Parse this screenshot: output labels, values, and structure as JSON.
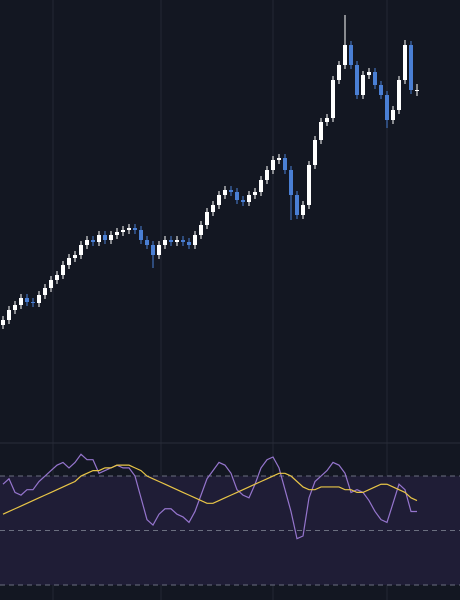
{
  "chart_data": [
    {
      "type": "candlestick",
      "ylim": [
        0,
        440
      ],
      "up_color": "#ffffff",
      "down_color": "#4a7fd4",
      "open": [
        115,
        120,
        130,
        135,
        142,
        138,
        137,
        145,
        152,
        160,
        165,
        175,
        182,
        185,
        195,
        200,
        198,
        205,
        200,
        205,
        208,
        210,
        212,
        210,
        200,
        195,
        185,
        195,
        200,
        198,
        200,
        198,
        195,
        205,
        215,
        228,
        235,
        245,
        250,
        248,
        240,
        238,
        245,
        248,
        260,
        270,
        280,
        282,
        270,
        245,
        225,
        235,
        275,
        300,
        318,
        322,
        360,
        375,
        395,
        375,
        345,
        365,
        368,
        355,
        345,
        320,
        330,
        360,
        395,
        350
      ],
      "high": [
        124,
        134,
        139,
        146,
        146,
        142,
        149,
        156,
        164,
        169,
        179,
        186,
        189,
        199,
        204,
        204,
        209,
        209,
        209,
        212,
        214,
        216,
        216,
        214,
        204,
        199,
        199,
        204,
        204,
        204,
        204,
        202,
        209,
        219,
        232,
        239,
        249,
        254,
        254,
        252,
        244,
        249,
        252,
        264,
        274,
        284,
        286,
        286,
        274,
        249,
        239,
        279,
        304,
        322,
        326,
        364,
        379,
        425,
        399,
        379,
        369,
        372,
        372,
        359,
        349,
        334,
        364,
        400,
        399,
        356
      ],
      "low": [
        111,
        116,
        126,
        131,
        134,
        133,
        133,
        141,
        148,
        156,
        161,
        171,
        178,
        181,
        191,
        194,
        194,
        196,
        196,
        201,
        204,
        206,
        206,
        196,
        191,
        172,
        181,
        191,
        194,
        194,
        194,
        191,
        191,
        201,
        211,
        224,
        231,
        241,
        244,
        236,
        234,
        234,
        241,
        244,
        256,
        266,
        276,
        266,
        220,
        221,
        221,
        231,
        271,
        296,
        314,
        318,
        356,
        371,
        371,
        341,
        341,
        361,
        351,
        341,
        312,
        316,
        326,
        356,
        346,
        344
      ],
      "close": [
        120,
        130,
        135,
        142,
        138,
        137,
        145,
        152,
        160,
        165,
        175,
        182,
        185,
        195,
        200,
        198,
        205,
        200,
        205,
        208,
        210,
        212,
        210,
        200,
        195,
        185,
        195,
        200,
        198,
        200,
        198,
        195,
        205,
        215,
        228,
        235,
        245,
        250,
        248,
        240,
        238,
        245,
        248,
        260,
        270,
        280,
        282,
        270,
        245,
        225,
        235,
        275,
        300,
        318,
        322,
        360,
        375,
        395,
        375,
        345,
        365,
        368,
        355,
        345,
        320,
        330,
        360,
        395,
        350,
        350
      ]
    },
    {
      "type": "line",
      "ylim": [
        24.5,
        81.4
      ],
      "hlines": [
        30,
        50,
        70
      ],
      "band": [
        30,
        70
      ],
      "band_color": "#1f1d36",
      "series": [
        {
          "color": "#9575cd",
          "values": [
            67,
            69,
            64,
            63,
            65,
            65,
            68,
            70,
            72,
            74,
            75,
            73,
            75,
            78,
            76,
            76,
            71,
            72,
            73,
            74,
            73,
            73,
            70,
            62,
            54,
            52,
            56,
            58,
            58,
            56,
            55,
            53,
            57,
            63,
            69,
            72,
            75,
            74,
            71,
            65,
            63,
            62,
            67,
            73,
            76,
            77,
            73,
            65,
            57,
            47,
            48,
            62,
            68,
            70,
            72,
            75,
            74,
            71,
            64,
            65,
            64,
            61,
            57,
            54,
            53,
            60,
            67,
            65,
            57,
            57
          ]
        },
        {
          "color": "#e8c547",
          "values": [
            56,
            57,
            58,
            59,
            60,
            61,
            62,
            63,
            64,
            65,
            66,
            67,
            68,
            70,
            71,
            72,
            72,
            73,
            73,
            74,
            74,
            74,
            73,
            72,
            70,
            69,
            68,
            67,
            66,
            65,
            64,
            63,
            62,
            61,
            60,
            60,
            61,
            62,
            63,
            64,
            65,
            66,
            67,
            68,
            69,
            70,
            71,
            71,
            70,
            68,
            66,
            65,
            65,
            66,
            66,
            66,
            66,
            65,
            65,
            64,
            64,
            65,
            66,
            67,
            67,
            66,
            65,
            64,
            62,
            61
          ]
        }
      ]
    }
  ]
}
